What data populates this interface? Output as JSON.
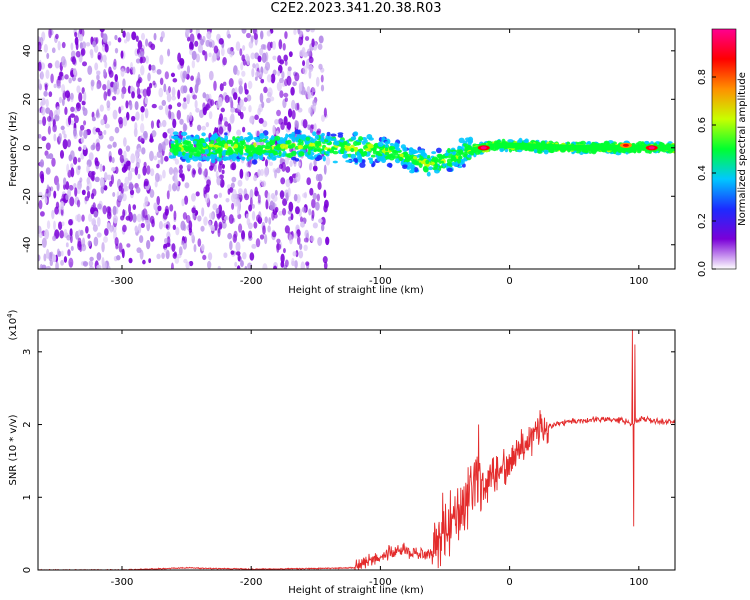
{
  "title": "C2E2.2023.341.20.38.R03",
  "chart_data": [
    {
      "type": "heatmap",
      "title": "C2E2.2023.341.20.38.R03",
      "xlabel": "Height of straight line (km)",
      "ylabel": "Frequency (Hz)",
      "xlim": [
        -365,
        128
      ],
      "ylim": [
        -50,
        49
      ],
      "xticks": [
        -300,
        -200,
        -100,
        0,
        100
      ],
      "yticks": [
        -40,
        -20,
        0,
        20,
        40
      ],
      "colorbar": {
        "label": "Normalized spectral amplitude",
        "range": [
          0.0,
          1.0
        ],
        "ticks": [
          "0.0",
          "0.2",
          "0.4",
          "0.6",
          "0.8"
        ],
        "colors": [
          "#ffffff",
          "#7a00d8",
          "#1c2bff",
          "#00c8ff",
          "#00ff30",
          "#c8ff00",
          "#ff9000",
          "#ff0000",
          "#ff0090"
        ]
      },
      "band_center": [
        {
          "x": -260,
          "y": 0
        },
        {
          "x": -200,
          "y": 0
        },
        {
          "x": -150,
          "y": 1
        },
        {
          "x": -120,
          "y": 0
        },
        {
          "x": -100,
          "y": -1
        },
        {
          "x": -80,
          "y": -4
        },
        {
          "x": -60,
          "y": -7
        },
        {
          "x": -45,
          "y": -4
        },
        {
          "x": -30,
          "y": -1
        },
        {
          "x": -10,
          "y": 1
        },
        {
          "x": 0,
          "y": 1
        },
        {
          "x": 50,
          "y": 0
        },
        {
          "x": 100,
          "y": 0
        },
        {
          "x": 128,
          "y": 0
        }
      ],
      "hotspots": [
        {
          "x": -20,
          "y": 0,
          "amplitude": 1.0
        },
        {
          "x": 90,
          "y": 1,
          "amplitude": 0.9
        },
        {
          "x": 110,
          "y": 0,
          "amplitude": 1.0
        }
      ],
      "noise_region_x": [
        -365,
        -140
      ]
    },
    {
      "type": "line",
      "xlabel": "Height of straight line (km)",
      "ylabel": "SNR (10 * v/v)",
      "yscale_label_prefix": "(x10",
      "yscale_label_exp": "4",
      "yscale_label_suffix": ")",
      "xlim": [
        -365,
        128
      ],
      "ylim": [
        0,
        3.3
      ],
      "xticks": [
        -300,
        -200,
        -100,
        0,
        100
      ],
      "yticks": [
        0,
        1,
        2,
        3
      ],
      "color": "#e32b2b",
      "series": [
        {
          "x": [
            -365,
            -300,
            -250,
            -200,
            -150,
            -120,
            -110,
            -100,
            -90,
            -80,
            -70,
            -60,
            -55,
            -50,
            -45,
            -40,
            -35,
            -30,
            -25,
            -20,
            -15,
            -10,
            -5,
            0,
            5,
            10,
            15,
            20,
            30,
            40,
            50,
            60,
            70,
            80,
            90,
            95,
            100,
            110,
            120,
            128
          ],
          "y": [
            0.0,
            0.0,
            0.03,
            0.01,
            0.02,
            0.03,
            0.12,
            0.18,
            0.25,
            0.28,
            0.2,
            0.25,
            0.45,
            0.6,
            0.75,
            0.85,
            0.95,
            1.05,
            1.1,
            1.15,
            1.25,
            1.32,
            1.4,
            1.55,
            1.6,
            1.7,
            1.82,
            1.9,
            1.97,
            2.03,
            2.05,
            2.06,
            2.07,
            2.07,
            2.05,
            2.0,
            2.08,
            2.05,
            2.04,
            2.04
          ]
        }
      ],
      "spikes": [
        {
          "x": -24,
          "y": 2.0
        },
        {
          "x": 95,
          "y": 3.3
        },
        {
          "x": 96,
          "y": 0.6
        },
        {
          "x": 97,
          "y": 3.1
        }
      ]
    }
  ]
}
